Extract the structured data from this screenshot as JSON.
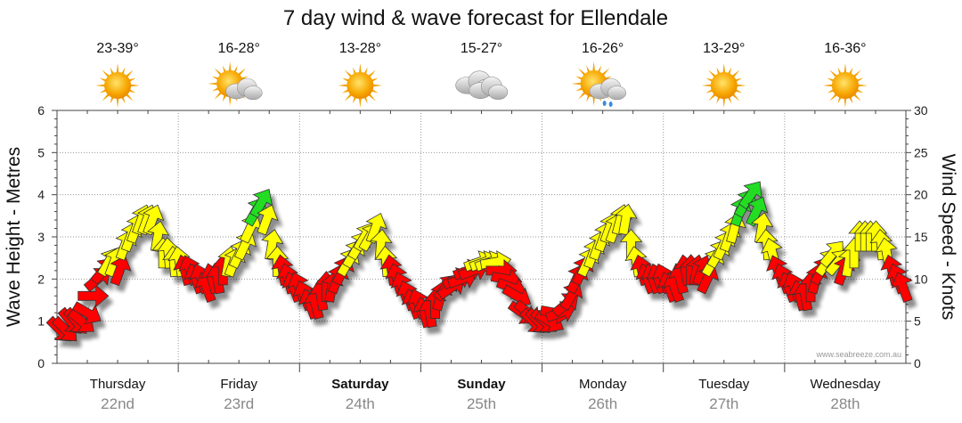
{
  "chart_data": {
    "type": "scatter",
    "title": "7 day wind & wave forecast for Ellendale",
    "ylabel_left": "Wave Height - Metres",
    "ylabel_right": "Wind Speed - Knots",
    "ylim_left": [
      0,
      6
    ],
    "ylim_right": [
      0,
      30
    ],
    "yticks_left": [
      "0",
      "1",
      "2",
      "3",
      "4",
      "5",
      "6"
    ],
    "yticks_right": [
      "0",
      "5",
      "10",
      "15",
      "20",
      "25",
      "30"
    ],
    "credit": "www.seabreeze.com.au",
    "days": [
      {
        "name": "Thursday",
        "date": "22nd",
        "bold": false,
        "temp": "23-39°",
        "icon": "sun-icon"
      },
      {
        "name": "Friday",
        "date": "23rd",
        "bold": false,
        "temp": "16-28°",
        "icon": "sun-cloud-icon"
      },
      {
        "name": "Saturday",
        "date": "24th",
        "bold": true,
        "temp": "13-28°",
        "icon": "sun-icon"
      },
      {
        "name": "Sunday",
        "date": "25th",
        "bold": true,
        "temp": "15-27°",
        "icon": "cloud-icon"
      },
      {
        "name": "Monday",
        "date": "26th",
        "bold": false,
        "temp": "16-26°",
        "icon": "sun-cloud-rain-icon"
      },
      {
        "name": "Tuesday",
        "date": "27th",
        "bold": false,
        "temp": "13-29°",
        "icon": "sun-icon"
      },
      {
        "name": "Wednesday",
        "date": "28th",
        "bold": false,
        "temp": "16-36°",
        "icon": "sun-icon"
      }
    ],
    "wind_series": {
      "name": "Wind speed (knots) with direction arrows, every 1.5 h",
      "colors": {
        "low": "#ff0000",
        "mid": "#ffff00",
        "high": "#22dd22"
      },
      "speed": [
        4,
        4,
        5,
        5,
        5,
        6,
        8,
        10,
        11,
        12,
        12,
        11,
        14,
        15,
        16,
        17,
        17,
        17,
        15,
        13,
        13,
        12,
        12,
        11,
        11,
        10,
        10,
        9,
        10,
        10,
        11,
        12,
        12,
        13,
        14,
        16,
        18,
        19,
        17,
        14,
        12,
        11,
        10,
        9,
        9,
        8,
        7,
        7,
        8,
        9,
        9,
        10,
        11,
        12,
        13,
        14,
        15,
        15,
        16,
        14,
        12,
        11,
        10,
        9,
        8,
        7,
        7,
        6,
        6,
        7,
        8,
        9,
        9,
        10,
        10,
        11,
        11,
        12,
        12,
        12,
        12,
        11,
        10,
        9,
        8,
        6,
        6,
        5,
        5,
        5,
        5,
        6,
        6,
        7,
        8,
        10,
        11,
        12,
        13,
        14,
        15,
        16,
        16,
        17,
        17,
        14,
        12,
        11,
        10,
        10,
        10,
        10,
        9,
        9,
        10,
        11,
        11,
        11,
        11,
        10,
        12,
        13,
        14,
        15,
        16,
        18,
        19,
        20,
        18,
        16,
        14,
        13,
        11,
        10,
        9,
        9,
        8,
        8,
        9,
        10,
        11,
        12,
        13,
        12,
        11,
        12,
        13,
        15,
        15,
        15,
        15,
        14,
        13,
        11,
        10,
        9
      ],
      "direction_deg": [
        315,
        315,
        320,
        320,
        310,
        300,
        270,
        230,
        220,
        210,
        200,
        200,
        200,
        200,
        200,
        200,
        200,
        200,
        190,
        180,
        175,
        175,
        170,
        165,
        160,
        160,
        160,
        160,
        165,
        170,
        180,
        190,
        200,
        205,
        205,
        205,
        210,
        210,
        200,
        190,
        180,
        170,
        165,
        160,
        160,
        160,
        160,
        165,
        170,
        180,
        190,
        200,
        205,
        210,
        210,
        210,
        210,
        210,
        200,
        185,
        175,
        170,
        165,
        160,
        160,
        160,
        160,
        165,
        170,
        180,
        195,
        220,
        235,
        245,
        250,
        250,
        250,
        250,
        250,
        250,
        260,
        270,
        280,
        290,
        300,
        305,
        310,
        315,
        315,
        310,
        300,
        280,
        250,
        230,
        210,
        205,
        205,
        205,
        200,
        200,
        200,
        200,
        200,
        195,
        190,
        180,
        170,
        165,
        160,
        160,
        160,
        160,
        160,
        160,
        165,
        170,
        180,
        190,
        200,
        205,
        210,
        210,
        205,
        200,
        195,
        200,
        210,
        215,
        205,
        190,
        175,
        165,
        160,
        160,
        160,
        160,
        165,
        170,
        180,
        195,
        210,
        215,
        220,
        220,
        200,
        190,
        180,
        180,
        180,
        180,
        180,
        175,
        170,
        165,
        160,
        160
      ]
    }
  }
}
